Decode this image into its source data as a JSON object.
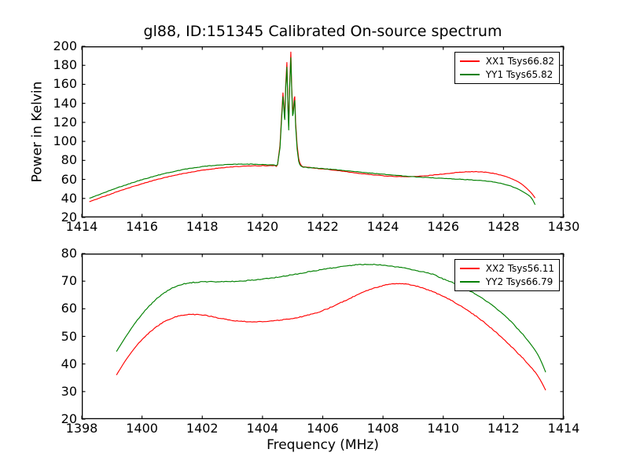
{
  "figure": {
    "title": "gl88, ID:151345 Calibrated On-source spectrum",
    "background_color": "#ffffff",
    "frame_color": "#000000"
  },
  "chart_data": [
    {
      "type": "line",
      "title": "gl88, ID:151345 Calibrated On-source spectrum",
      "xlabel": "",
      "ylabel": "Power in Kelvin",
      "xlim": [
        1414,
        1430
      ],
      "ylim": [
        20,
        200
      ],
      "xticks": [
        1414,
        1416,
        1418,
        1420,
        1422,
        1424,
        1426,
        1428,
        1430
      ],
      "yticks": [
        20,
        40,
        60,
        80,
        100,
        120,
        140,
        160,
        180,
        200
      ],
      "grid": false,
      "legend_position": "upper right",
      "series": [
        {
          "name": "XX1 Tsys66.82",
          "color": "#ff0000",
          "points": [
            [
              1414.25,
              36.5
            ],
            [
              1414.6,
              40.5
            ],
            [
              1414.95,
              44.5
            ],
            [
              1415.3,
              48.3
            ],
            [
              1415.65,
              52.0
            ],
            [
              1416.0,
              55.4
            ],
            [
              1416.35,
              58.6
            ],
            [
              1416.7,
              61.5
            ],
            [
              1417.05,
              64.1
            ],
            [
              1417.4,
              66.4
            ],
            [
              1417.75,
              68.4
            ],
            [
              1418.1,
              70.1
            ],
            [
              1418.45,
              71.5
            ],
            [
              1418.8,
              72.6
            ],
            [
              1419.15,
              73.5
            ],
            [
              1419.5,
              74.1
            ],
            [
              1419.85,
              74.4
            ],
            [
              1420.15,
              74.5
            ],
            [
              1420.4,
              74.6
            ],
            [
              1420.5,
              75.5
            ],
            [
              1420.58,
              96
            ],
            [
              1420.63,
              125
            ],
            [
              1420.68,
              151
            ],
            [
              1420.71,
              138
            ],
            [
              1420.74,
              127
            ],
            [
              1420.77,
              160
            ],
            [
              1420.81,
              183
            ],
            [
              1420.84,
              142
            ],
            [
              1420.87,
              116
            ],
            [
              1420.9,
              160
            ],
            [
              1420.94,
              194
            ],
            [
              1420.97,
              158
            ],
            [
              1421.0,
              131
            ],
            [
              1421.04,
              140
            ],
            [
              1421.07,
              147
            ],
            [
              1421.1,
              120
            ],
            [
              1421.15,
              96
            ],
            [
              1421.2,
              82
            ],
            [
              1421.28,
              75
            ],
            [
              1421.4,
              73.2
            ],
            [
              1421.7,
              72.0
            ],
            [
              1422.0,
              71.0
            ],
            [
              1422.3,
              70.0
            ],
            [
              1422.6,
              68.9
            ],
            [
              1422.9,
              67.7
            ],
            [
              1423.2,
              66.5
            ],
            [
              1423.5,
              65.4
            ],
            [
              1423.8,
              64.4
            ],
            [
              1424.1,
              63.6
            ],
            [
              1424.4,
              63.1
            ],
            [
              1424.7,
              62.9
            ],
            [
              1425.0,
              63.1
            ],
            [
              1425.3,
              63.6
            ],
            [
              1425.6,
              64.4
            ],
            [
              1425.9,
              65.4
            ],
            [
              1426.2,
              66.4
            ],
            [
              1426.5,
              67.4
            ],
            [
              1426.8,
              68.0
            ],
            [
              1427.1,
              68.1
            ],
            [
              1427.4,
              67.5
            ],
            [
              1427.7,
              66.1
            ],
            [
              1428.0,
              63.8
            ],
            [
              1428.3,
              60.3
            ],
            [
              1428.6,
              55.2
            ],
            [
              1428.9,
              46.5
            ],
            [
              1429.05,
              40.5
            ]
          ]
        },
        {
          "name": "YY1 Tsys65.82",
          "color": "#008000",
          "points": [
            [
              1414.25,
              40.0
            ],
            [
              1414.6,
              44.3
            ],
            [
              1414.95,
              48.5
            ],
            [
              1415.3,
              52.5
            ],
            [
              1415.65,
              56.2
            ],
            [
              1416.0,
              59.7
            ],
            [
              1416.35,
              62.9
            ],
            [
              1416.7,
              65.8
            ],
            [
              1417.05,
              68.3
            ],
            [
              1417.4,
              70.5
            ],
            [
              1417.75,
              72.3
            ],
            [
              1418.1,
              73.8
            ],
            [
              1418.45,
              74.9
            ],
            [
              1418.8,
              75.6
            ],
            [
              1419.15,
              76.0
            ],
            [
              1419.5,
              76.1
            ],
            [
              1419.85,
              75.9
            ],
            [
              1420.15,
              75.5
            ],
            [
              1420.4,
              75.1
            ],
            [
              1420.5,
              75.8
            ],
            [
              1420.58,
              93
            ],
            [
              1420.63,
              121
            ],
            [
              1420.68,
              147
            ],
            [
              1420.71,
              134
            ],
            [
              1420.74,
              123
            ],
            [
              1420.77,
              156
            ],
            [
              1420.81,
              178
            ],
            [
              1420.84,
              138
            ],
            [
              1420.87,
              112
            ],
            [
              1420.9,
              156
            ],
            [
              1420.94,
              188
            ],
            [
              1420.97,
              154
            ],
            [
              1421.0,
              127
            ],
            [
              1421.04,
              136
            ],
            [
              1421.07,
              143
            ],
            [
              1421.1,
              116
            ],
            [
              1421.15,
              92
            ],
            [
              1421.2,
              79
            ],
            [
              1421.28,
              74.2
            ],
            [
              1421.4,
              72.8
            ],
            [
              1421.7,
              72.2
            ],
            [
              1422.0,
              71.4
            ],
            [
              1422.3,
              70.6
            ],
            [
              1422.6,
              69.7
            ],
            [
              1422.9,
              68.8
            ],
            [
              1423.2,
              67.9
            ],
            [
              1423.5,
              67.0
            ],
            [
              1423.8,
              66.1
            ],
            [
              1424.1,
              65.2
            ],
            [
              1424.4,
              64.4
            ],
            [
              1424.7,
              63.6
            ],
            [
              1425.0,
              62.9
            ],
            [
              1425.3,
              62.3
            ],
            [
              1425.6,
              61.7
            ],
            [
              1425.9,
              61.2
            ],
            [
              1426.2,
              60.7
            ],
            [
              1426.5,
              60.2
            ],
            [
              1426.8,
              59.7
            ],
            [
              1427.1,
              59.1
            ],
            [
              1427.4,
              58.3
            ],
            [
              1427.7,
              57.1
            ],
            [
              1428.0,
              55.2
            ],
            [
              1428.3,
              52.2
            ],
            [
              1428.6,
              47.8
            ],
            [
              1428.9,
              41.5
            ],
            [
              1429.05,
              33.5
            ]
          ]
        }
      ]
    },
    {
      "type": "line",
      "title": "",
      "xlabel": "Frequency (MHz)",
      "ylabel": "",
      "xlim": [
        1398,
        1414
      ],
      "ylim": [
        20,
        80
      ],
      "xticks": [
        1398,
        1400,
        1402,
        1404,
        1406,
        1408,
        1410,
        1412,
        1414
      ],
      "yticks": [
        20,
        30,
        40,
        50,
        60,
        70,
        80
      ],
      "grid": false,
      "legend_position": "upper right",
      "series": [
        {
          "name": "XX2 Tsys56.11",
          "color": "#ff0000",
          "points": [
            [
              1399.15,
              36.0
            ],
            [
              1399.5,
              42.0
            ],
            [
              1399.85,
              47.0
            ],
            [
              1400.2,
              51.0
            ],
            [
              1400.55,
              54.0
            ],
            [
              1400.9,
              56.2
            ],
            [
              1401.25,
              57.4
            ],
            [
              1401.6,
              57.9
            ],
            [
              1401.95,
              57.8
            ],
            [
              1402.3,
              57.2
            ],
            [
              1402.65,
              56.4
            ],
            [
              1403.0,
              55.8
            ],
            [
              1403.35,
              55.4
            ],
            [
              1403.7,
              55.3
            ],
            [
              1404.05,
              55.4
            ],
            [
              1404.4,
              55.7
            ],
            [
              1404.75,
              56.1
            ],
            [
              1405.1,
              56.7
            ],
            [
              1405.45,
              57.5
            ],
            [
              1405.8,
              58.6
            ],
            [
              1406.15,
              60.0
            ],
            [
              1406.5,
              61.7
            ],
            [
              1406.85,
              63.5
            ],
            [
              1407.2,
              65.3
            ],
            [
              1407.55,
              66.9
            ],
            [
              1407.9,
              68.1
            ],
            [
              1408.25,
              68.9
            ],
            [
              1408.6,
              69.0
            ],
            [
              1408.95,
              68.6
            ],
            [
              1409.3,
              67.6
            ],
            [
              1409.65,
              66.2
            ],
            [
              1410.0,
              64.5
            ],
            [
              1410.35,
              62.5
            ],
            [
              1410.7,
              60.2
            ],
            [
              1411.05,
              57.6
            ],
            [
              1411.4,
              54.7
            ],
            [
              1411.75,
              51.5
            ],
            [
              1412.1,
              48.0
            ],
            [
              1412.45,
              44.2
            ],
            [
              1412.8,
              40.2
            ],
            [
              1413.15,
              35.5
            ],
            [
              1413.4,
              30.5
            ]
          ]
        },
        {
          "name": "YY2 Tsys66.79",
          "color": "#008000",
          "points": [
            [
              1399.15,
              44.5
            ],
            [
              1399.5,
              50.5
            ],
            [
              1399.85,
              56.0
            ],
            [
              1400.2,
              60.5
            ],
            [
              1400.55,
              64.2
            ],
            [
              1400.9,
              66.9
            ],
            [
              1401.25,
              68.6
            ],
            [
              1401.6,
              69.4
            ],
            [
              1401.95,
              69.7
            ],
            [
              1402.3,
              69.8
            ],
            [
              1402.65,
              69.8
            ],
            [
              1403.0,
              69.9
            ],
            [
              1403.35,
              70.1
            ],
            [
              1403.7,
              70.4
            ],
            [
              1404.05,
              70.8
            ],
            [
              1404.4,
              71.3
            ],
            [
              1404.75,
              71.9
            ],
            [
              1405.1,
              72.5
            ],
            [
              1405.45,
              73.2
            ],
            [
              1405.8,
              73.9
            ],
            [
              1406.15,
              74.5
            ],
            [
              1406.5,
              75.1
            ],
            [
              1406.85,
              75.6
            ],
            [
              1407.2,
              76.0
            ],
            [
              1407.55,
              76.1
            ],
            [
              1407.9,
              75.9
            ],
            [
              1408.25,
              75.5
            ],
            [
              1408.6,
              74.9
            ],
            [
              1408.95,
              74.2
            ],
            [
              1409.3,
              73.4
            ],
            [
              1409.65,
              72.5
            ],
            [
              1410.0,
              70.8
            ],
            [
              1410.35,
              69.3
            ],
            [
              1410.7,
              67.5
            ],
            [
              1411.05,
              65.4
            ],
            [
              1411.4,
              63.0
            ],
            [
              1411.75,
              60.2
            ],
            [
              1412.1,
              56.9
            ],
            [
              1412.45,
              53.0
            ],
            [
              1412.8,
              48.6
            ],
            [
              1413.15,
              43.2
            ],
            [
              1413.4,
              37.0
            ]
          ]
        }
      ]
    }
  ]
}
